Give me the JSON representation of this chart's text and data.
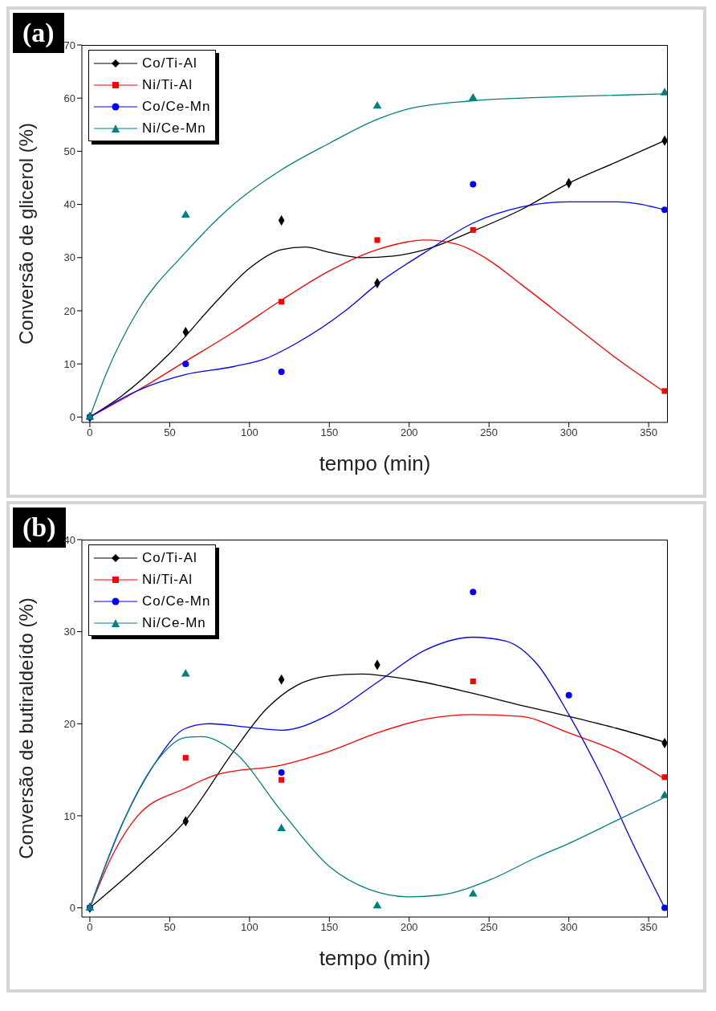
{
  "chart_data": [
    {
      "type": "scatter",
      "title": "(a)",
      "xlabel": "tempo (min)",
      "ylabel": "Conversão de glicerol (%)",
      "xlim": [
        -5,
        362
      ],
      "xticks": [
        0,
        50,
        100,
        150,
        200,
        250,
        300,
        350
      ],
      "ylim": [
        -1,
        70
      ],
      "yticks": [
        0,
        10,
        20,
        30,
        40,
        50,
        60,
        70
      ],
      "legend": "top left",
      "series": [
        {
          "name": "Co/Ti-Al",
          "type": "scatter",
          "marker": "diamond",
          "color": "#000000",
          "x": [
            0,
            60,
            120,
            180,
            300,
            360
          ],
          "values": [
            0,
            16,
            37,
            25.2,
            44,
            52
          ]
        },
        {
          "name": "Ni/Ti-Al",
          "type": "scatter",
          "marker": "square",
          "color": "#ff0000",
          "x": [
            0,
            120,
            180,
            240,
            360
          ],
          "values": [
            0,
            21.7,
            33.3,
            35.2,
            4.9
          ]
        },
        {
          "name": "Co/Ce-Mn",
          "type": "scatter",
          "marker": "circle",
          "color": "#0000ff",
          "x": [
            0,
            60,
            120,
            240,
            360
          ],
          "values": [
            0,
            10,
            8.5,
            43.8,
            39
          ]
        },
        {
          "name": "Ni/Ce-Mn",
          "type": "scatter",
          "marker": "triangle",
          "color": "#008080",
          "x": [
            0,
            60,
            180,
            240,
            360
          ],
          "values": [
            0,
            38,
            58.5,
            60,
            61
          ]
        },
        {
          "type": "line",
          "marker": "none",
          "color": "#000000",
          "x": [
            0,
            20,
            50,
            80,
            100,
            120,
            135,
            150,
            170,
            190,
            210,
            240,
            270,
            300,
            330,
            360
          ],
          "values": [
            0,
            4,
            12,
            22,
            28,
            31.5,
            32,
            31,
            30,
            30.3,
            31.5,
            35,
            39,
            44,
            48,
            52
          ]
        },
        {
          "type": "line",
          "marker": "none",
          "color": "#ff0000",
          "x": [
            0,
            30,
            60,
            90,
            120,
            150,
            180,
            210,
            230,
            250,
            270,
            300,
            330,
            360
          ],
          "values": [
            0,
            5,
            10.5,
            16,
            22,
            27.5,
            31.5,
            33.3,
            32.5,
            29.5,
            25,
            18,
            11,
            4.7
          ]
        },
        {
          "type": "line",
          "marker": "none",
          "color": "#0000ff",
          "x": [
            0,
            30,
            60,
            90,
            110,
            130,
            160,
            180,
            210,
            240,
            270,
            300,
            330,
            360
          ],
          "values": [
            0,
            5,
            8,
            9.5,
            11,
            14,
            20,
            25,
            31,
            36.5,
            39.5,
            40.5,
            40.5,
            39
          ]
        },
        {
          "type": "line",
          "marker": "none",
          "color": "#008080",
          "x": [
            0,
            10,
            30,
            60,
            90,
            120,
            150,
            180,
            200,
            240,
            300,
            360
          ],
          "values": [
            0,
            8,
            20,
            31,
            40,
            46.5,
            51.5,
            56,
            58,
            59.5,
            60.3,
            60.8
          ]
        }
      ]
    },
    {
      "type": "scatter",
      "title": "(b)",
      "xlabel": "tempo (min)",
      "ylabel": "Conversão de butiraldeído (%)",
      "xlim": [
        -5,
        362
      ],
      "xticks": [
        0,
        50,
        100,
        150,
        200,
        250,
        300,
        350
      ],
      "ylim": [
        -1,
        40
      ],
      "yticks": [
        0,
        10,
        20,
        30,
        40
      ],
      "legend": "top left",
      "series": [
        {
          "name": "Co/Ti-Al",
          "type": "scatter",
          "marker": "diamond",
          "color": "#000000",
          "x": [
            0,
            60,
            120,
            180,
            360
          ],
          "values": [
            0,
            9.4,
            24.8,
            26.4,
            17.9
          ]
        },
        {
          "name": "Ni/Ti-Al",
          "type": "scatter",
          "marker": "square",
          "color": "#ff0000",
          "x": [
            0,
            60,
            120,
            240,
            360
          ],
          "values": [
            0,
            16.3,
            13.9,
            24.6,
            14.2
          ]
        },
        {
          "name": "Co/Ce-Mn",
          "type": "scatter",
          "marker": "circle",
          "color": "#0000ff",
          "x": [
            0,
            120,
            240,
            300,
            360
          ],
          "values": [
            0,
            14.7,
            34.3,
            23.1,
            0
          ]
        },
        {
          "name": "Ni/Ce-Mn",
          "type": "scatter",
          "marker": "triangle",
          "color": "#008080",
          "x": [
            0,
            60,
            120,
            180,
            240,
            360
          ],
          "values": [
            0,
            25.4,
            8.6,
            0.2,
            1.5,
            12.2
          ]
        },
        {
          "type": "line",
          "marker": "none",
          "color": "#000000",
          "x": [
            0,
            30,
            60,
            90,
            110,
            130,
            150,
            170,
            200,
            240,
            270,
            300,
            330,
            360
          ],
          "values": [
            0,
            4.5,
            9.5,
            17,
            21.5,
            24.2,
            25.2,
            25.4,
            24.8,
            23.3,
            22,
            20.8,
            19.5,
            18
          ]
        },
        {
          "type": "line",
          "marker": "none",
          "color": "#ff0000",
          "x": [
            0,
            15,
            30,
            60,
            80,
            120,
            150,
            180,
            210,
            240,
            270,
            300,
            330,
            360
          ],
          "values": [
            0,
            6,
            10,
            13,
            14.5,
            15.5,
            17,
            19,
            20.5,
            21,
            20.8,
            19,
            17,
            14
          ]
        },
        {
          "type": "line",
          "marker": "none",
          "color": "#0000ff",
          "x": [
            0,
            20,
            40,
            60,
            75,
            100,
            120,
            150,
            180,
            210,
            240,
            260,
            280,
            300,
            320,
            340,
            360
          ],
          "values": [
            0,
            9,
            15.5,
            19.5,
            20,
            19.6,
            19.3,
            21,
            24.5,
            28,
            29.4,
            29,
            26.5,
            21,
            14.5,
            7,
            0
          ]
        },
        {
          "type": "line",
          "marker": "none",
          "color": "#008080",
          "x": [
            0,
            20,
            40,
            60,
            70,
            90,
            120,
            150,
            175,
            200,
            220,
            250,
            280,
            300,
            330,
            360
          ],
          "values": [
            0,
            9,
            15.5,
            18.5,
            18.6,
            17,
            10.5,
            4.5,
            2,
            1.2,
            1.4,
            3,
            5.5,
            7,
            9.5,
            12
          ]
        }
      ]
    }
  ]
}
